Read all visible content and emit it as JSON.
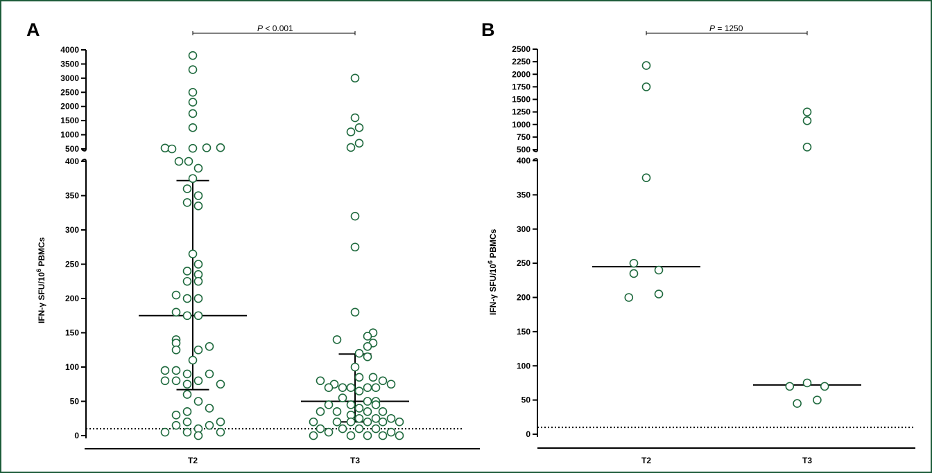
{
  "colors": {
    "frame": "#1d5c3a",
    "marker": "#1f6a3e",
    "line": "#000000"
  },
  "chart_data": [
    {
      "type": "scatter",
      "panel_label": "A",
      "ylabel_main": "IFN-γ SFU/10",
      "ylabel_sup": "6",
      "ylabel_tail": " PBMCs",
      "pvalue_prefix": "P",
      "pvalue_text": " < 0.001",
      "categories": [
        "T2",
        "T3"
      ],
      "threshold": 10,
      "yaxis": {
        "lower_range": [
          0,
          400
        ],
        "lower_ticks": [
          "0",
          "50",
          "100",
          "150",
          "200",
          "250",
          "300",
          "350",
          "400"
        ],
        "upper_range": [
          500,
          4000
        ],
        "upper_ticks": [
          "500",
          "1000",
          "1500",
          "2000",
          "2500",
          "3000",
          "3500",
          "4000"
        ],
        "break": true
      },
      "series": [
        {
          "category": "T2",
          "median": 175,
          "q1": 67,
          "q3": 372,
          "points": [
            {
              "dx": 0,
              "y": 3800
            },
            {
              "dx": 0,
              "y": 3300
            },
            {
              "dx": 0,
              "y": 2500
            },
            {
              "dx": 0,
              "y": 2150
            },
            {
              "dx": 0,
              "y": 1750
            },
            {
              "dx": 0,
              "y": 1250
            },
            {
              "dx": -2,
              "y": 530
            },
            {
              "dx": -1.5,
              "y": 500
            },
            {
              "dx": 0,
              "y": 520
            },
            {
              "dx": 1,
              "y": 540
            },
            {
              "dx": 2,
              "y": 545
            },
            {
              "dx": -1,
              "y": 400
            },
            {
              "dx": -0.3,
              "y": 400
            },
            {
              "dx": 0.4,
              "y": 390
            },
            {
              "dx": 0,
              "y": 375
            },
            {
              "dx": -0.4,
              "y": 360
            },
            {
              "dx": 0.4,
              "y": 350
            },
            {
              "dx": -0.4,
              "y": 340
            },
            {
              "dx": 0.4,
              "y": 335
            },
            {
              "dx": 0,
              "y": 265
            },
            {
              "dx": 0.4,
              "y": 250
            },
            {
              "dx": -0.4,
              "y": 240
            },
            {
              "dx": 0.4,
              "y": 235
            },
            {
              "dx": -0.4,
              "y": 225
            },
            {
              "dx": 0.4,
              "y": 225
            },
            {
              "dx": -1.2,
              "y": 205
            },
            {
              "dx": -0.4,
              "y": 200
            },
            {
              "dx": 0.4,
              "y": 200
            },
            {
              "dx": -1.2,
              "y": 180
            },
            {
              "dx": -0.4,
              "y": 175
            },
            {
              "dx": 0.4,
              "y": 175
            },
            {
              "dx": -1.2,
              "y": 140
            },
            {
              "dx": -1.2,
              "y": 135
            },
            {
              "dx": 1.2,
              "y": 130
            },
            {
              "dx": -1.2,
              "y": 125
            },
            {
              "dx": 0.4,
              "y": 125
            },
            {
              "dx": 0,
              "y": 110
            },
            {
              "dx": -2,
              "y": 95
            },
            {
              "dx": -1.2,
              "y": 95
            },
            {
              "dx": 1.2,
              "y": 90
            },
            {
              "dx": -0.4,
              "y": 90
            },
            {
              "dx": 2,
              "y": 75
            },
            {
              "dx": -2,
              "y": 80
            },
            {
              "dx": -1.2,
              "y": 80
            },
            {
              "dx": 0.4,
              "y": 80
            },
            {
              "dx": -0.4,
              "y": 75
            },
            {
              "dx": -0.4,
              "y": 60
            },
            {
              "dx": 0.4,
              "y": 50
            },
            {
              "dx": 1.2,
              "y": 40
            },
            {
              "dx": -0.4,
              "y": 35
            },
            {
              "dx": -1.2,
              "y": 30
            },
            {
              "dx": -0.4,
              "y": 20
            },
            {
              "dx": 2,
              "y": 20
            },
            {
              "dx": -1.2,
              "y": 15
            },
            {
              "dx": 1.2,
              "y": 15
            },
            {
              "dx": 0.4,
              "y": 10
            },
            {
              "dx": -2,
              "y": 5
            },
            {
              "dx": -0.4,
              "y": 5
            },
            {
              "dx": 2,
              "y": 5
            },
            {
              "dx": 0.4,
              "y": 0
            }
          ]
        },
        {
          "category": "T3",
          "median": 50,
          "q1": 20,
          "q3": 119,
          "points": [
            {
              "dx": 0,
              "y": 3000
            },
            {
              "dx": 0,
              "y": 1600
            },
            {
              "dx": 0.3,
              "y": 1250
            },
            {
              "dx": -0.3,
              "y": 1100
            },
            {
              "dx": 0.3,
              "y": 700
            },
            {
              "dx": -0.3,
              "y": 550
            },
            {
              "dx": 0,
              "y": 320
            },
            {
              "dx": 0,
              "y": 275
            },
            {
              "dx": 0,
              "y": 180
            },
            {
              "dx": 1.3,
              "y": 150
            },
            {
              "dx": 0.9,
              "y": 145
            },
            {
              "dx": -1.3,
              "y": 140
            },
            {
              "dx": 1.3,
              "y": 135
            },
            {
              "dx": 0.9,
              "y": 130
            },
            {
              "dx": 0.3,
              "y": 120
            },
            {
              "dx": 0.9,
              "y": 115
            },
            {
              "dx": 0,
              "y": 100
            },
            {
              "dx": 0.3,
              "y": 85
            },
            {
              "dx": 1.3,
              "y": 85
            },
            {
              "dx": -2.5,
              "y": 80
            },
            {
              "dx": -1.5,
              "y": 75
            },
            {
              "dx": 2,
              "y": 80
            },
            {
              "dx": 2.6,
              "y": 75
            },
            {
              "dx": -0.9,
              "y": 70
            },
            {
              "dx": -0.3,
              "y": 70
            },
            {
              "dx": 0.9,
              "y": 70
            },
            {
              "dx": 1.5,
              "y": 70
            },
            {
              "dx": -1.9,
              "y": 70
            },
            {
              "dx": 0.3,
              "y": 65
            },
            {
              "dx": -0.9,
              "y": 55
            },
            {
              "dx": 0.9,
              "y": 50
            },
            {
              "dx": 1.5,
              "y": 50
            },
            {
              "dx": -1.9,
              "y": 45
            },
            {
              "dx": -0.3,
              "y": 45
            },
            {
              "dx": 0.3,
              "y": 40
            },
            {
              "dx": 1.5,
              "y": 45
            },
            {
              "dx": -1.3,
              "y": 35
            },
            {
              "dx": -2.5,
              "y": 35
            },
            {
              "dx": 0.9,
              "y": 35
            },
            {
              "dx": 2,
              "y": 35
            },
            {
              "dx": -0.3,
              "y": 30
            },
            {
              "dx": 0.3,
              "y": 25
            },
            {
              "dx": 1.5,
              "y": 25
            },
            {
              "dx": 2.6,
              "y": 25
            },
            {
              "dx": -3,
              "y": 20
            },
            {
              "dx": -1.3,
              "y": 20
            },
            {
              "dx": -0.3,
              "y": 20
            },
            {
              "dx": 0.9,
              "y": 20
            },
            {
              "dx": 2,
              "y": 20
            },
            {
              "dx": 3.2,
              "y": 20
            },
            {
              "dx": -2.5,
              "y": 10
            },
            {
              "dx": -0.9,
              "y": 10
            },
            {
              "dx": 0.3,
              "y": 10
            },
            {
              "dx": 1.5,
              "y": 10
            },
            {
              "dx": -1.9,
              "y": 5
            },
            {
              "dx": 2.6,
              "y": 5
            },
            {
              "dx": -3,
              "y": 0
            },
            {
              "dx": -0.3,
              "y": 0
            },
            {
              "dx": 0.9,
              "y": 0
            },
            {
              "dx": 2,
              "y": 0
            },
            {
              "dx": 3.2,
              "y": 0
            }
          ]
        }
      ]
    },
    {
      "type": "scatter",
      "panel_label": "B",
      "ylabel_main": "IFN-γ SFU/10",
      "ylabel_sup": "6",
      "ylabel_tail": " PBMCs",
      "pvalue_prefix": "P",
      "pvalue_text": " = 1250",
      "categories": [
        "T2",
        "T3"
      ],
      "threshold": 10,
      "yaxis": {
        "lower_range": [
          0,
          400
        ],
        "lower_ticks": [
          "0",
          "50",
          "100",
          "150",
          "200",
          "250",
          "300",
          "350",
          "400"
        ],
        "upper_range": [
          500,
          2500
        ],
        "upper_ticks": [
          "500",
          "750",
          "1000",
          "1250",
          "1500",
          "1750",
          "2000",
          "2250",
          "2500"
        ],
        "break": true
      },
      "series": [
        {
          "category": "T2",
          "median": 245,
          "points": [
            {
              "dx": 0,
              "y": 2175
            },
            {
              "dx": 0,
              "y": 1750
            },
            {
              "dx": 0,
              "y": 375
            },
            {
              "dx": -1,
              "y": 250
            },
            {
              "dx": -1,
              "y": 235
            },
            {
              "dx": 1,
              "y": 240
            },
            {
              "dx": -1.4,
              "y": 200
            },
            {
              "dx": 1,
              "y": 205
            }
          ]
        },
        {
          "category": "T3",
          "median": 72,
          "points": [
            {
              "dx": 0,
              "y": 1250
            },
            {
              "dx": 0,
              "y": 1075
            },
            {
              "dx": 0,
              "y": 550
            },
            {
              "dx": -1.4,
              "y": 70
            },
            {
              "dx": 0,
              "y": 75
            },
            {
              "dx": 1.4,
              "y": 70
            },
            {
              "dx": -0.8,
              "y": 45
            },
            {
              "dx": 0.8,
              "y": 50
            }
          ]
        }
      ]
    }
  ]
}
